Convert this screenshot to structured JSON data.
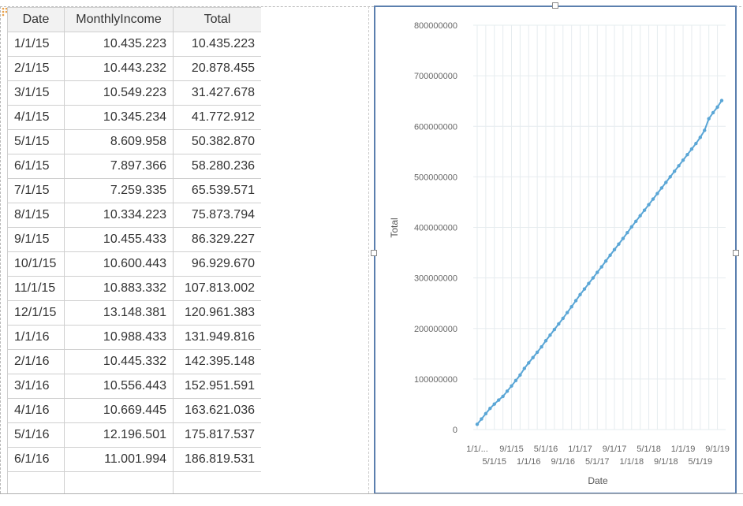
{
  "table": {
    "headers": [
      "Date",
      "MonthlyIncome",
      "Total"
    ],
    "rows": [
      [
        "1/1/15",
        "10.435.223",
        "10.435.223"
      ],
      [
        "2/1/15",
        "10.443.232",
        "20.878.455"
      ],
      [
        "3/1/15",
        "10.549.223",
        "31.427.678"
      ],
      [
        "4/1/15",
        "10.345.234",
        "41.772.912"
      ],
      [
        "5/1/15",
        "8.609.958",
        "50.382.870"
      ],
      [
        "6/1/15",
        "7.897.366",
        "58.280.236"
      ],
      [
        "7/1/15",
        "7.259.335",
        "65.539.571"
      ],
      [
        "8/1/15",
        "10.334.223",
        "75.873.794"
      ],
      [
        "9/1/15",
        "10.455.433",
        "86.329.227"
      ],
      [
        "10/1/15",
        "10.600.443",
        "96.929.670"
      ],
      [
        "11/1/15",
        "10.883.332",
        "107.813.002"
      ],
      [
        "12/1/15",
        "13.148.381",
        "120.961.383"
      ],
      [
        "1/1/16",
        "10.988.433",
        "131.949.816"
      ],
      [
        "2/1/16",
        "10.445.332",
        "142.395.148"
      ],
      [
        "3/1/16",
        "10.556.443",
        "152.951.591"
      ],
      [
        "4/1/16",
        "10.669.445",
        "163.621.036"
      ],
      [
        "5/1/16",
        "12.196.501",
        "175.817.537"
      ],
      [
        "6/1/16",
        "11.001.994",
        "186.819.531"
      ],
      [
        "",
        "",
        ""
      ]
    ]
  },
  "chart_data": {
    "type": "line",
    "xlabel": "Date",
    "ylabel": "Total",
    "ylim": [
      0,
      800000000
    ],
    "y_ticks": [
      "0",
      "100000000",
      "200000000",
      "300000000",
      "400000000",
      "500000000",
      "600000000",
      "700000000",
      "800000000"
    ],
    "x_tick_labels_row1": [
      "1/1/...",
      "9/1/15",
      "5/1/16",
      "1/1/17",
      "9/1/17",
      "5/1/18",
      "1/1/19",
      "9/1/19"
    ],
    "x_tick_labels_row2": [
      "5/1/15",
      "1/1/16",
      "9/1/16",
      "5/1/17",
      "1/1/18",
      "9/1/18",
      "5/1/19"
    ],
    "grid": true,
    "legend": "none",
    "line_color": "#5aa6d6",
    "x": [
      "1/1/15",
      "2/1/15",
      "3/1/15",
      "4/1/15",
      "5/1/15",
      "6/1/15",
      "7/1/15",
      "8/1/15",
      "9/1/15",
      "10/1/15",
      "11/1/15",
      "12/1/15",
      "1/1/16",
      "2/1/16",
      "3/1/16",
      "4/1/16",
      "5/1/16",
      "6/1/16",
      "7/1/16",
      "8/1/16",
      "9/1/16",
      "10/1/16",
      "11/1/16",
      "12/1/16",
      "1/1/17",
      "2/1/17",
      "3/1/17",
      "4/1/17",
      "5/1/17",
      "6/1/17",
      "7/1/17",
      "8/1/17",
      "9/1/17",
      "10/1/17",
      "11/1/17",
      "12/1/17",
      "1/1/18",
      "2/1/18",
      "3/1/18",
      "4/1/18",
      "5/1/18",
      "6/1/18",
      "7/1/18",
      "8/1/18",
      "9/1/18",
      "10/1/18",
      "11/1/18",
      "12/1/18",
      "1/1/19",
      "2/1/19",
      "3/1/19",
      "4/1/19",
      "5/1/19",
      "6/1/19",
      "7/1/19",
      "8/1/19",
      "9/1/19",
      "10/1/19"
    ],
    "series": [
      {
        "values": [
          10435223,
          20878455,
          31427678,
          41772912,
          50382870,
          58280236,
          65539571,
          75873794,
          86329227,
          96929670,
          107813002,
          120961383,
          131949816,
          142395148,
          152951591,
          163621036,
          175817537,
          186819531,
          198000000,
          209000000,
          220000000,
          231500000,
          243000000,
          255000000,
          267000000,
          278000000,
          289000000,
          300000000,
          311000000,
          322000000,
          333500000,
          345000000,
          356000000,
          367000000,
          378000000,
          389500000,
          401000000,
          412000000,
          423000000,
          434000000,
          445000000,
          456000000,
          467000000,
          478000000,
          489000000,
          500000000,
          511000000,
          522000000,
          533000000,
          544000000,
          555000000,
          566000000,
          578000000,
          592000000,
          615000000,
          627000000,
          638000000,
          651000000
        ]
      }
    ]
  }
}
